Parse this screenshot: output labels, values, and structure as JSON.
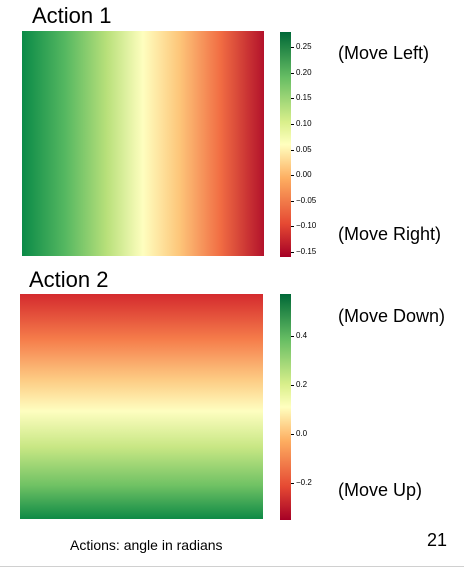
{
  "chart_data": [
    {
      "type": "heatmap",
      "title": "Action 1",
      "gradient_direction": "left-to-right",
      "colormap": "RdYlGn",
      "colorbar": {
        "min": -0.16,
        "max": 0.28,
        "ticks": [
          "0.25",
          "0.20",
          "0.15",
          "0.10",
          "0.05",
          "0.00",
          "−0.05",
          "−0.10",
          "−0.15"
        ],
        "tick_values": [
          0.25,
          0.2,
          0.15,
          0.1,
          0.05,
          0.0,
          -0.05,
          -0.1,
          -0.15
        ]
      },
      "annotations": [
        "(Move Left)",
        "(Move Right)"
      ]
    },
    {
      "type": "heatmap",
      "title": "Action 2",
      "gradient_direction": "top-to-bottom",
      "colormap": "RdYlGn",
      "colorbar": {
        "min": -0.35,
        "max": 0.57,
        "ticks": [
          "0.4",
          "0.2",
          "0.0",
          "−0.2"
        ],
        "tick_values": [
          0.4,
          0.2,
          0.0,
          -0.2
        ]
      },
      "annotations": [
        "(Move Down)",
        "(Move Up)"
      ]
    }
  ],
  "caption": "Actions: angle in radians",
  "page_number": "21",
  "colors": {
    "red": "#a50026",
    "red_orange": "#f46d43",
    "orange": "#fdae61",
    "pale_yellow": "#ffffbf",
    "light_green": "#a6d96a",
    "green": "#1a9850",
    "dark_green": "#006837"
  }
}
